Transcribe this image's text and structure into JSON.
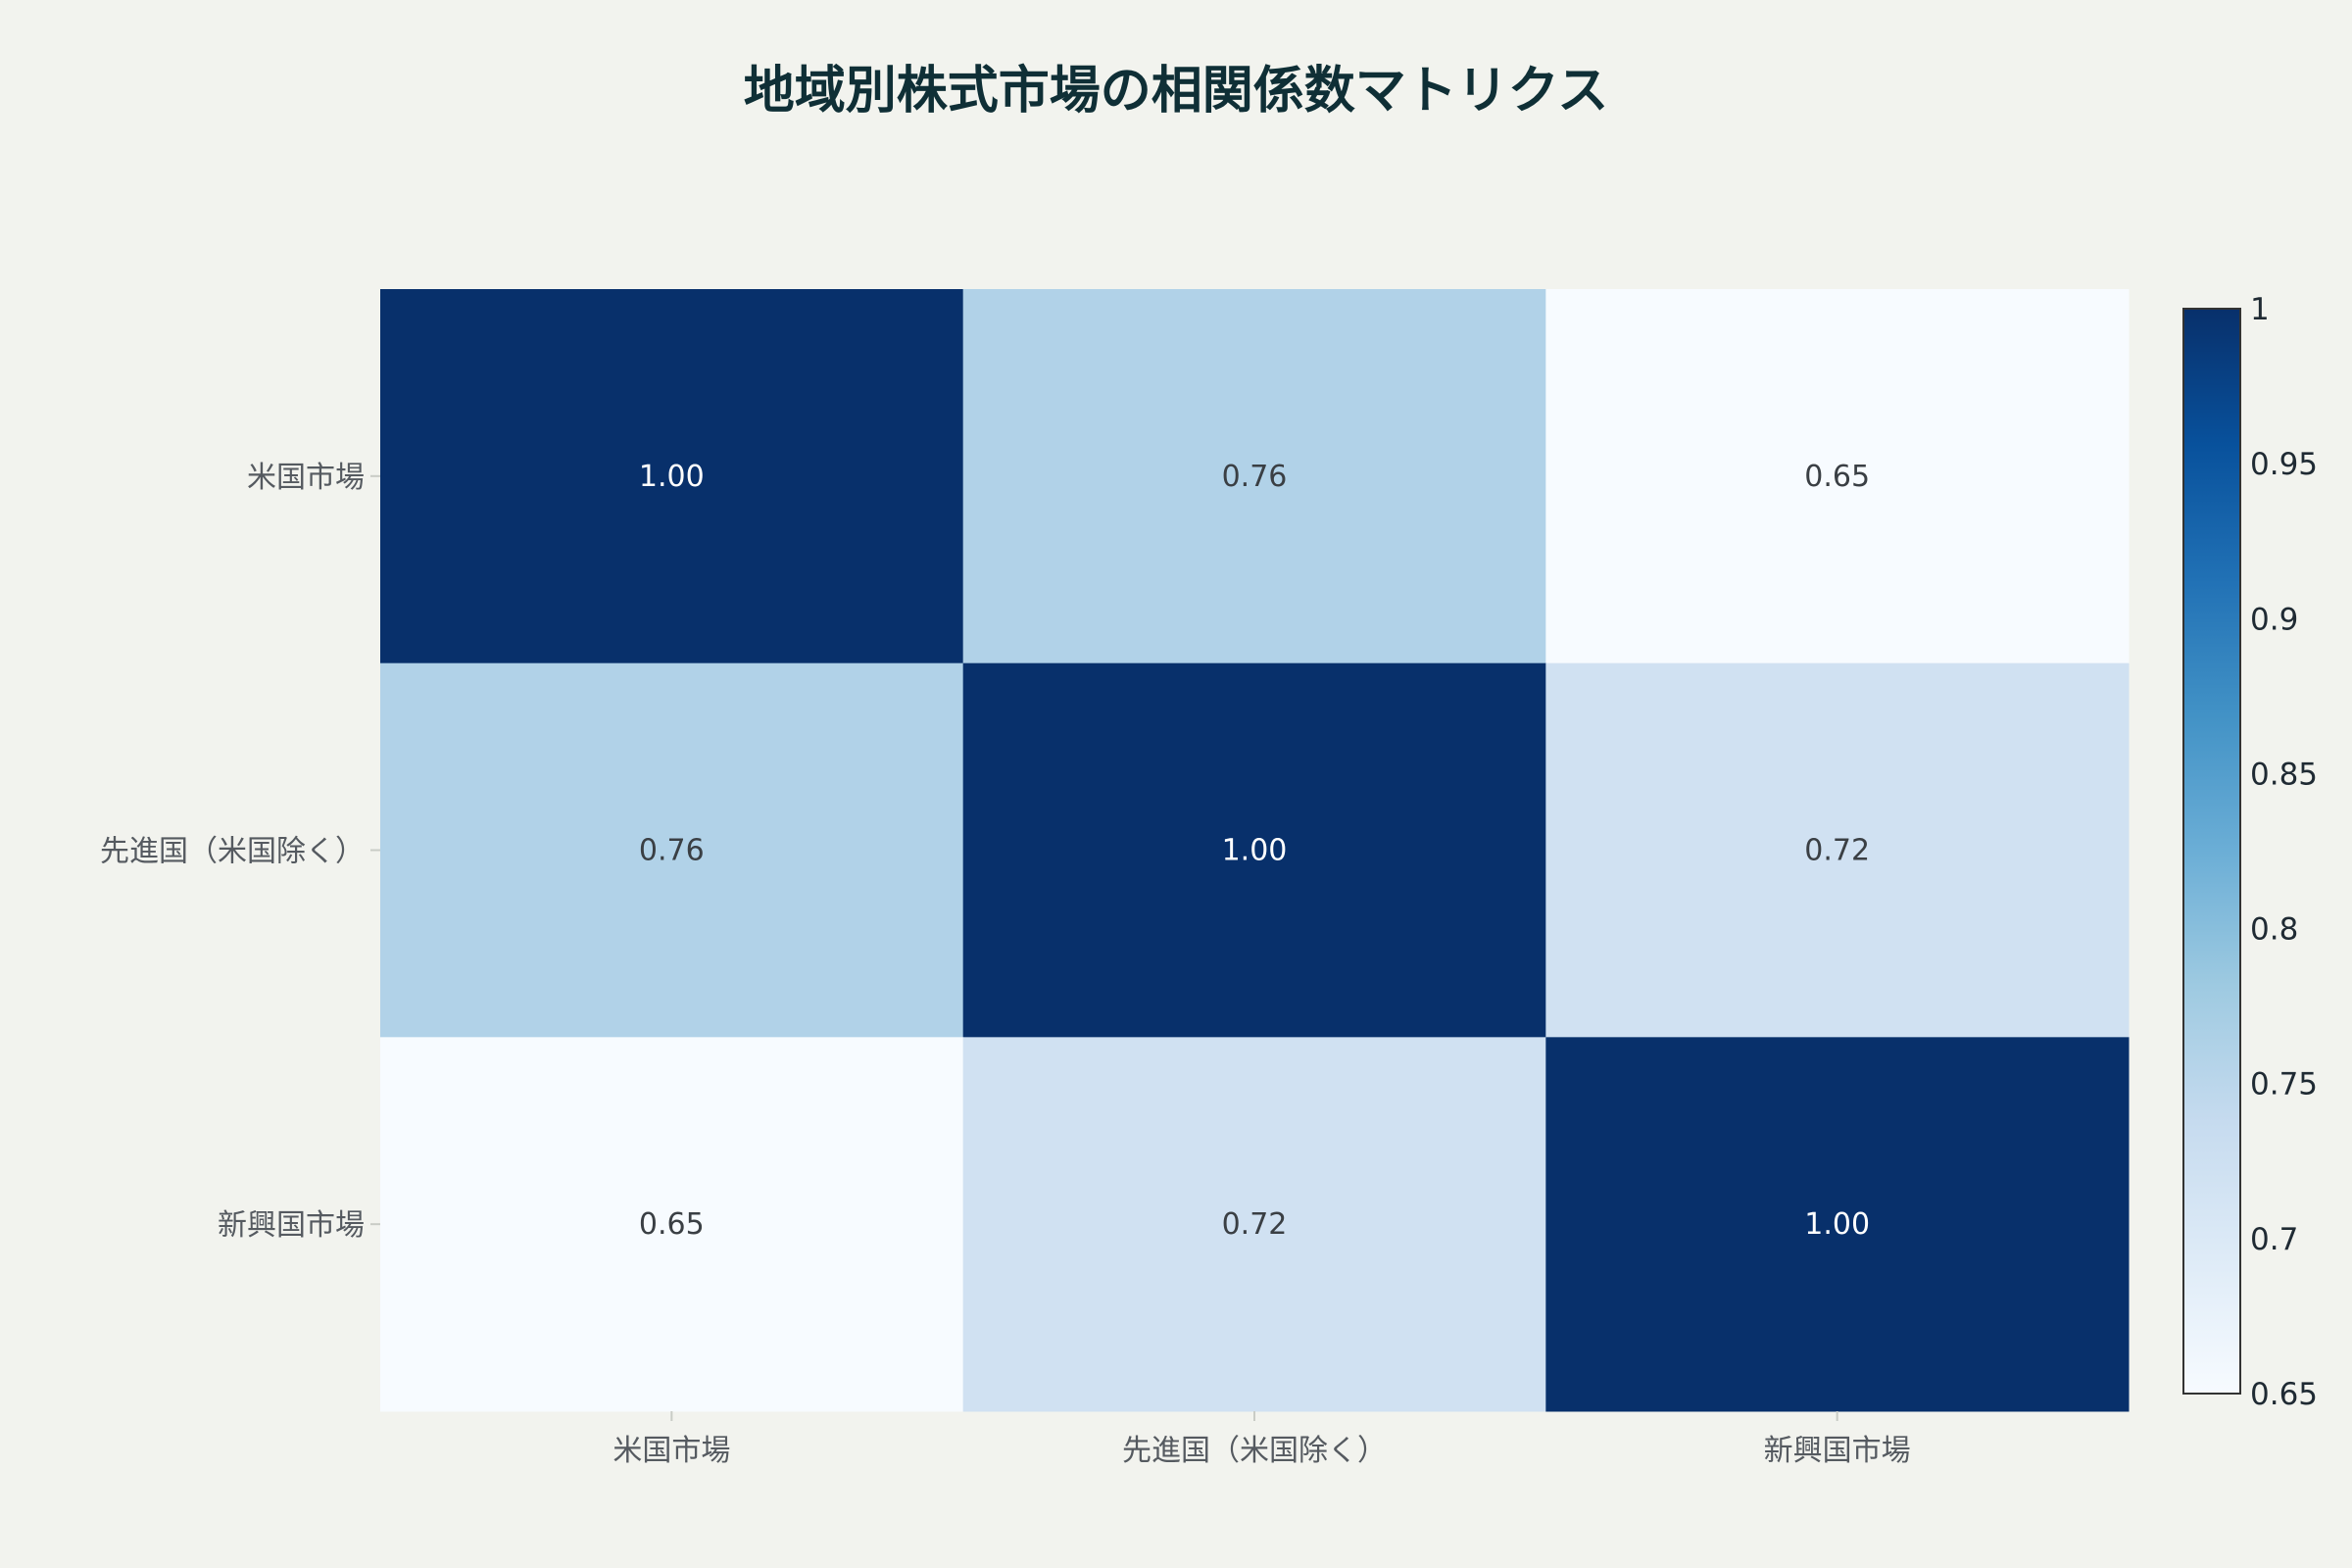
{
  "chart_data": {
    "type": "heatmap",
    "title": "地域別株式市場の相関係数マトリクス",
    "x_categories": [
      "米国市場",
      "先進国（米国除く）",
      "新興国市場"
    ],
    "y_categories": [
      "米国市場",
      "先進国（米国除く）",
      "新興国市場"
    ],
    "values": [
      [
        1.0,
        0.76,
        0.65
      ],
      [
        0.76,
        1.0,
        0.72
      ],
      [
        0.65,
        0.72,
        1.0
      ]
    ],
    "cell_labels": [
      [
        "1.00",
        "0.76",
        "0.65"
      ],
      [
        "0.76",
        "1.00",
        "0.72"
      ],
      [
        "0.65",
        "0.72",
        "1.00"
      ]
    ],
    "colorscale": "Blues",
    "zmin": 0.65,
    "zmax": 1.0,
    "colorbar": {
      "ticks": [
        0.65,
        0.7,
        0.75,
        0.8,
        0.85,
        0.9,
        0.95,
        1
      ],
      "tick_labels": [
        "0.65",
        "0.7",
        "0.75",
        "0.8",
        "0.85",
        "0.9",
        "0.95",
        "1"
      ],
      "position": "right"
    },
    "grid": false,
    "legend": "none"
  }
}
